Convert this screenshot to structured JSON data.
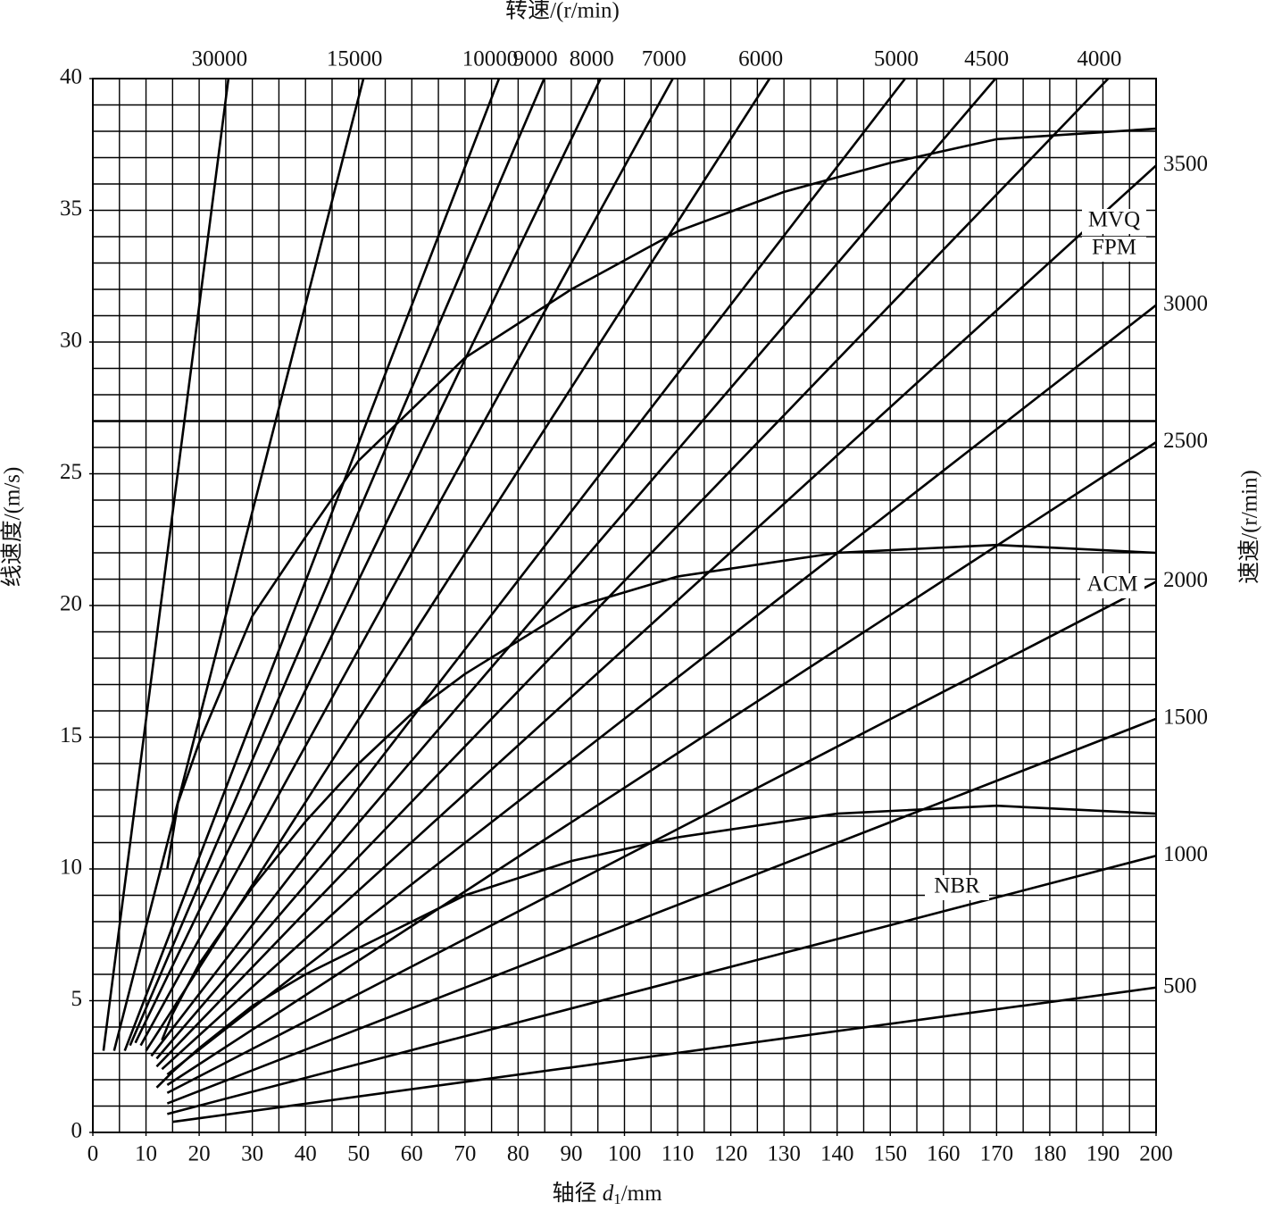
{
  "chart_data": {
    "type": "line",
    "title": "转速/(r/min)",
    "x_label": {
      "prefix": "轴径 ",
      "var": "d",
      "sub": "1",
      "suffix": "/mm"
    },
    "y_label": "线速度/(m/s)",
    "y2_label": "速速/(r/min)",
    "xlim": [
      0,
      200
    ],
    "ylim": [
      0,
      40
    ],
    "xticks": [
      0,
      10,
      20,
      30,
      40,
      50,
      60,
      70,
      80,
      90,
      100,
      110,
      120,
      130,
      140,
      150,
      160,
      170,
      180,
      190,
      200
    ],
    "yticks": [
      0,
      5,
      10,
      15,
      20,
      25,
      30,
      35,
      40
    ],
    "grid": true,
    "grid_step_x": 5,
    "grid_step_y": 1,
    "ref_line": 27,
    "color": "#000000",
    "series": [
      {
        "name": "30000",
        "x": [
          2,
          25.5
        ],
        "values": [
          3.1,
          40
        ]
      },
      {
        "name": "15000",
        "x": [
          4,
          50.9
        ],
        "values": [
          3.1,
          40
        ]
      },
      {
        "name": "10000",
        "x": [
          6,
          76.4
        ],
        "values": [
          3.1,
          40
        ]
      },
      {
        "name": "9000",
        "x": [
          7,
          84.9
        ],
        "values": [
          3.3,
          40
        ]
      },
      {
        "name": "8000",
        "x": [
          8,
          95.5
        ],
        "values": [
          3.4,
          40
        ]
      },
      {
        "name": "7000",
        "x": [
          9,
          109.1
        ],
        "values": [
          3.3,
          40
        ]
      },
      {
        "name": "6000",
        "x": [
          10,
          127.3
        ],
        "values": [
          3.1,
          40
        ]
      },
      {
        "name": "5000",
        "x": [
          11,
          152.8
        ],
        "values": [
          2.9,
          40
        ]
      },
      {
        "name": "4500",
        "x": [
          12,
          169.8
        ],
        "values": [
          2.8,
          40
        ]
      },
      {
        "name": "4000",
        "x": [
          12,
          191
        ],
        "values": [
          2.5,
          40
        ]
      },
      {
        "name": "3500",
        "x": [
          13,
          200
        ],
        "values": [
          2.4,
          36.7
        ]
      },
      {
        "name": "3000",
        "x": [
          14,
          200
        ],
        "values": [
          2.2,
          31.4
        ]
      },
      {
        "name": "2500",
        "x": [
          14,
          200
        ],
        "values": [
          1.8,
          26.2
        ]
      },
      {
        "name": "2000",
        "x": [
          14,
          200
        ],
        "values": [
          1.5,
          20.9
        ]
      },
      {
        "name": "1500",
        "x": [
          14,
          200
        ],
        "values": [
          1.1,
          15.7
        ]
      },
      {
        "name": "1000",
        "x": [
          14,
          200
        ],
        "values": [
          0.7,
          10.5
        ]
      },
      {
        "name": "500",
        "x": [
          15,
          200
        ],
        "values": [
          0.4,
          5.5
        ]
      }
    ],
    "curves": [
      {
        "labels": [
          "MVQ",
          "FPM"
        ],
        "x": [
          14,
          16,
          20,
          30,
          40,
          50,
          70,
          90,
          110,
          130,
          150,
          170,
          200
        ],
        "values": [
          10,
          12.5,
          14.8,
          19.6,
          22.6,
          25.5,
          29.4,
          32,
          34.2,
          35.7,
          36.8,
          37.7,
          38.1
        ]
      },
      {
        "labels": [
          "ACM"
        ],
        "x": [
          13,
          15,
          20,
          30,
          40,
          50,
          60,
          70,
          90,
          110,
          140,
          170,
          200
        ],
        "values": [
          3.5,
          4.5,
          6.4,
          9.3,
          11.8,
          14,
          15.9,
          17.4,
          19.9,
          21.1,
          22,
          22.3,
          22
        ]
      },
      {
        "labels": [
          "NBR"
        ],
        "x": [
          12,
          15,
          20,
          30,
          40,
          50,
          70,
          90,
          110,
          140,
          170,
          200
        ],
        "values": [
          1.7,
          2.3,
          3.2,
          4.8,
          6,
          7,
          9,
          10.3,
          11.2,
          12.1,
          12.4,
          12.1
        ]
      }
    ]
  }
}
